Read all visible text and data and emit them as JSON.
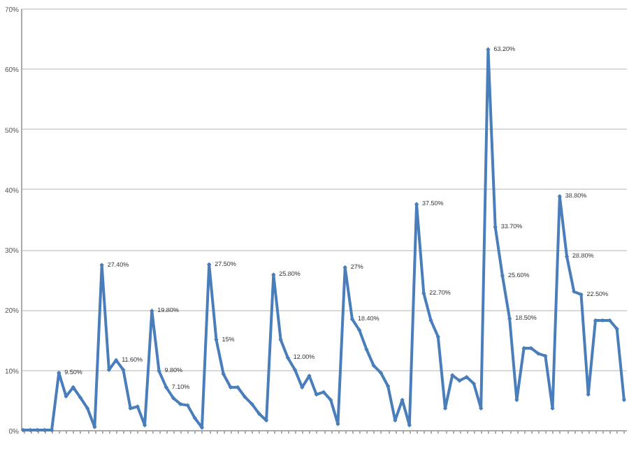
{
  "chart_data": {
    "type": "line",
    "categories": [
      null,
      null,
      null,
      null,
      null,
      null,
      null,
      null,
      null,
      null,
      null,
      null,
      null,
      null,
      null,
      null,
      null,
      null,
      null,
      null,
      null,
      null,
      null,
      null,
      null,
      null,
      null,
      null,
      null,
      null,
      null,
      null,
      null,
      null,
      null,
      null,
      null,
      null,
      null,
      null,
      null,
      null,
      null,
      null,
      null,
      null,
      null,
      null,
      null,
      null,
      null,
      null,
      null,
      null,
      null,
      null,
      null,
      null,
      null,
      null,
      null,
      null,
      null,
      null,
      null,
      null,
      null,
      null,
      null,
      null,
      null,
      null,
      null,
      null,
      null,
      null,
      null,
      null,
      null,
      null,
      null,
      null,
      null,
      null,
      null
    ],
    "values": [
      0,
      0,
      0,
      0,
      0,
      9.5,
      5.6,
      7.1,
      5.4,
      3.6,
      0.5,
      27.4,
      10,
      11.6,
      10,
      3.6,
      3.9,
      0.8,
      19.8,
      9.8,
      7.1,
      5.3,
      4.3,
      4.1,
      2,
      0.4,
      27.5,
      15,
      9.3,
      7.1,
      7.1,
      5.5,
      4.3,
      2.7,
      1.6,
      25.8,
      15,
      12,
      10,
      7.1,
      9,
      5.9,
      6.3,
      5,
      1,
      27,
      18.4,
      16.6,
      13.4,
      10.7,
      9.5,
      7.3,
      1.6,
      5,
      0.8,
      37.5,
      22.7,
      18.2,
      15.5,
      3.6,
      9.1,
      8.2,
      8.8,
      7.7,
      3.6,
      63.2,
      33.7,
      25.6,
      18.5,
      5,
      13.6,
      13.6,
      12.7,
      12.3,
      3.6,
      38.8,
      28.8,
      23,
      22.5,
      5.9,
      18.2,
      18.2,
      18.2,
      16.8,
      5
    ],
    "value_labels": [
      null,
      null,
      null,
      null,
      null,
      "9.50%",
      null,
      null,
      null,
      null,
      null,
      "27.40%",
      null,
      "11.60%",
      null,
      null,
      null,
      null,
      "19.80%",
      "9.80%",
      "7.10%",
      null,
      null,
      null,
      null,
      null,
      "27.50%",
      "15%",
      null,
      null,
      null,
      null,
      null,
      null,
      null,
      "25.80%",
      null,
      "12.00%",
      null,
      null,
      null,
      null,
      null,
      null,
      null,
      "27%",
      "18.40%",
      null,
      null,
      null,
      null,
      null,
      null,
      null,
      null,
      "37.50%",
      "22.70%",
      null,
      null,
      null,
      null,
      null,
      null,
      null,
      null,
      "63.20%",
      "33.70%",
      "25.60%",
      "18.50%",
      null,
      null,
      null,
      null,
      null,
      null,
      "38.80%",
      "28.80%",
      null,
      "22.50%",
      null,
      null,
      null,
      null,
      null,
      null
    ],
    "color": "#4a7ebb",
    "marker": "diamond",
    "grid": "y",
    "ylim": [
      0,
      70
    ],
    "yticks": [
      {
        "value": 0,
        "label": "0%"
      },
      {
        "value": 10,
        "label": "10%"
      },
      {
        "value": 20,
        "label": "20%"
      },
      {
        "value": 30,
        "label": "30%"
      },
      {
        "value": 40,
        "label": "40%"
      },
      {
        "value": 50,
        "label": "50%"
      },
      {
        "value": 60,
        "label": "60%"
      },
      {
        "value": 70,
        "label": "70%"
      }
    ]
  }
}
